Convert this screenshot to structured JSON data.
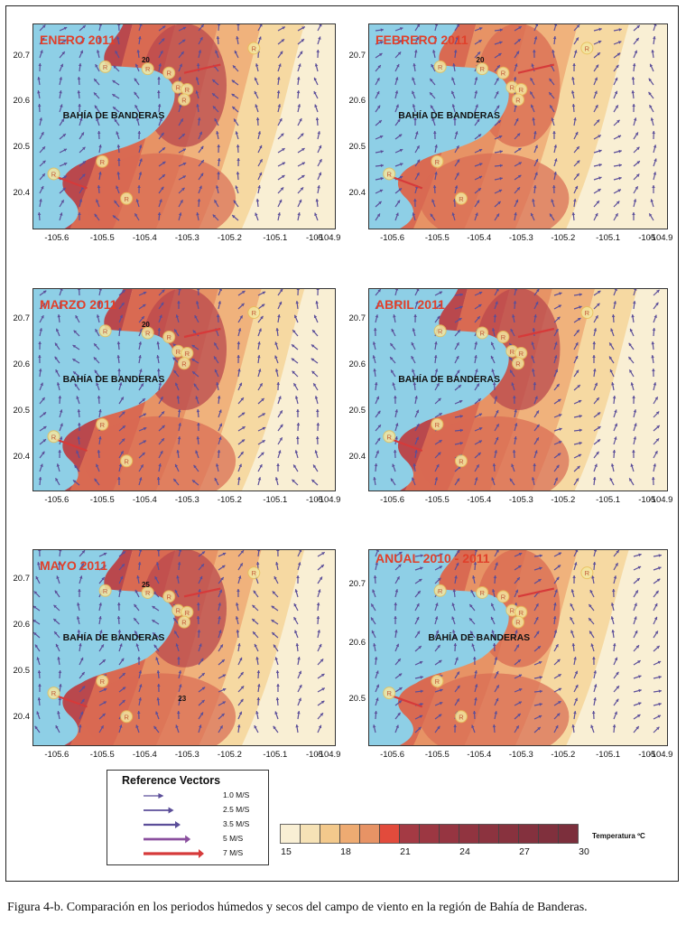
{
  "colors": {
    "water": "#8ecfe6",
    "land_temps": [
      "#f9efd4",
      "#f6d9a2",
      "#f0b27c",
      "#e79365",
      "#d96a52",
      "#b9484d"
    ],
    "arrow": "#5b4e99",
    "accent_red": "#e0402b"
  },
  "panels": [
    {
      "title": "ENERO 2011",
      "bay_label": "BAHÍA DE BANDERAS",
      "yticks": [
        "20.7",
        "20.6",
        "20.5",
        "20.4"
      ],
      "xticks": [
        "-105.6",
        "-105.5",
        "-105.4",
        "-105.3",
        "-105.2",
        "-105.1",
        "-105",
        "-104.9"
      ],
      "contour_labels": [
        "20"
      ]
    },
    {
      "title": "FEBRERO 2011",
      "bay_label": "BAHÍA DE BANDERAS",
      "yticks": [
        "20.7",
        "20.6",
        "20.5",
        "20.4"
      ],
      "xticks": [
        "-105.6",
        "-105.5",
        "-105.4",
        "-105.3",
        "-105.2",
        "-105.1",
        "-105",
        "-104.9"
      ],
      "contour_labels": [
        "20"
      ]
    },
    {
      "title": "MARZO 2011",
      "bay_label": "BAHÍA DE BANDERAS",
      "yticks": [
        "20.7",
        "20.6",
        "20.5",
        "20.4"
      ],
      "xticks": [
        "-105.6",
        "-105.5",
        "-105.4",
        "-105.3",
        "-105.2",
        "-105.1",
        "-105",
        "-104.9"
      ],
      "contour_labels": [
        "20"
      ]
    },
    {
      "title": "ABRIL 2011",
      "bay_label": "BAHÍA DE BANDERAS",
      "yticks": [
        "20.7",
        "20.6",
        "20.5",
        "20.4"
      ],
      "xticks": [
        "-105.6",
        "-105.5",
        "-105.4",
        "-105.3",
        "-105.2",
        "-105.1",
        "-105",
        "-104.9"
      ],
      "contour_labels": []
    },
    {
      "title": "MAYO 2011",
      "bay_label": "BAHÍA DE BANDERAS",
      "yticks": [
        "20.7",
        "20.6",
        "20.5",
        "20.4"
      ],
      "xticks": [
        "-105.6",
        "-105.5",
        "-105.4",
        "-105.3",
        "-105.2",
        "-105.1",
        "-105",
        "-104.9"
      ],
      "contour_labels": [
        "25",
        "23"
      ]
    },
    {
      "title": "ANUAL 2010 - 2011",
      "bay_label": "BAHÍA DE BANDERAS",
      "yticks": [
        "20.7",
        "20.6",
        "20.5"
      ],
      "xticks": [
        "-105.6",
        "-105.5",
        "-105.4",
        "-105.3",
        "-105.2",
        "-105.1",
        "-105",
        "-104.9"
      ],
      "contour_labels": []
    }
  ],
  "reference": {
    "title": "Reference Vectors",
    "items": [
      "1.0 M/S",
      "2.5 M/S",
      "3.5 M/S",
      "5 M/S",
      "7 M/S"
    ],
    "speeds": [
      1.0,
      2.5,
      3.5,
      5,
      7
    ]
  },
  "colorbar": {
    "title": "Temperatura ºC",
    "labels": [
      "15",
      "18",
      "21",
      "24",
      "27",
      "30"
    ],
    "colors": [
      "#f9efd4",
      "#f6e2b6",
      "#f3c98c",
      "#eeab72",
      "#e79365",
      "#e24b3c",
      "#a43a44",
      "#9c3742",
      "#963541",
      "#913440",
      "#8c333f",
      "#88323e",
      "#84313e",
      "#80303d",
      "#7c2f3c"
    ]
  },
  "caption": "Figura 4-b. Comparación en los periodos húmedos y secos del campo de viento en la región de Bahía de Banderas."
}
